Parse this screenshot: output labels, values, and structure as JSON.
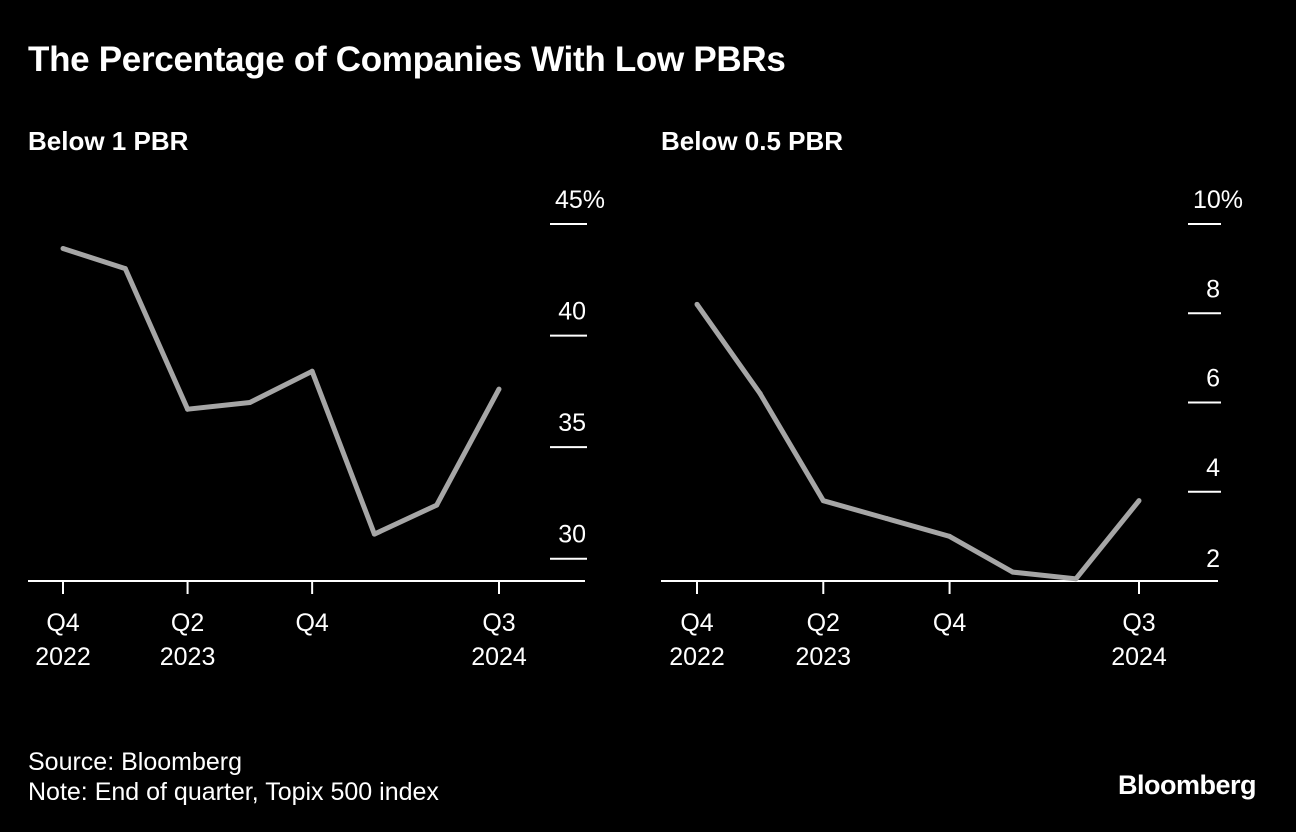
{
  "title": "The Percentage of Companies With Low PBRs",
  "footer": {
    "source": "Source: Bloomberg",
    "note": "Note: End of quarter, Topix 500 index",
    "brand": "Bloomberg"
  },
  "colors": {
    "background": "#000000",
    "text": "#ffffff",
    "line": "#a6a6a6",
    "axis": "#ffffff"
  },
  "chart_data": [
    {
      "type": "line",
      "title": "Below 1 PBR",
      "xlabel": "",
      "ylabel": "",
      "x": [
        "Q4 2022",
        "Q1 2023",
        "Q2 2023",
        "Q3 2023",
        "Q4 2023",
        "Q1 2024",
        "Q2 2024",
        "Q3 2024"
      ],
      "values": [
        43.9,
        43.0,
        36.7,
        37.0,
        38.4,
        31.1,
        32.4,
        37.6
      ],
      "ylim": [
        29,
        45
      ],
      "yticks": [
        30,
        35,
        40,
        45
      ],
      "ytick_labels": [
        "30",
        "35",
        "40",
        "45%"
      ],
      "xticks": [
        {
          "index": 0,
          "line1": "Q4",
          "line2": "2022"
        },
        {
          "index": 2,
          "line1": "Q2",
          "line2": "2023"
        },
        {
          "index": 4,
          "line1": "Q4",
          "line2": ""
        },
        {
          "index": 7,
          "line1": "Q3",
          "line2": "2024"
        }
      ],
      "grid": false,
      "legend": "none"
    },
    {
      "type": "line",
      "title": "Below 0.5 PBR",
      "xlabel": "",
      "ylabel": "",
      "x": [
        "Q4 2022",
        "Q1 2023",
        "Q2 2023",
        "Q3 2023",
        "Q4 2023",
        "Q1 2024",
        "Q2 2024",
        "Q3 2024"
      ],
      "values": [
        8.2,
        6.2,
        3.8,
        3.4,
        3.0,
        2.2,
        2.05,
        3.8
      ],
      "ylim": [
        2,
        10
      ],
      "yticks": [
        2,
        4,
        6,
        8,
        10
      ],
      "ytick_labels": [
        "2",
        "4",
        "6",
        "8",
        "10%"
      ],
      "xticks": [
        {
          "index": 0,
          "line1": "Q4",
          "line2": "2022"
        },
        {
          "index": 2,
          "line1": "Q2",
          "line2": "2023"
        },
        {
          "index": 4,
          "line1": "Q4",
          "line2": ""
        },
        {
          "index": 7,
          "line1": "Q3",
          "line2": "2024"
        }
      ],
      "grid": false,
      "legend": "none"
    }
  ]
}
